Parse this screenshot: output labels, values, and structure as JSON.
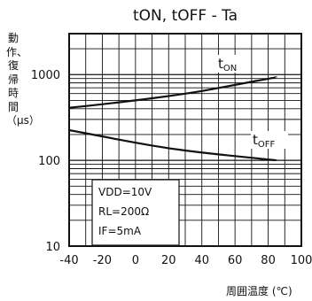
{
  "chart_data": {
    "type": "line",
    "title": "tON, tOFF - Ta",
    "xlabel": "周囲温度 (℃)",
    "ylabel": "動作、復帰時間（μs）",
    "x_ticks": [
      -40,
      -20,
      0,
      20,
      40,
      60,
      80,
      100
    ],
    "x_tick_labels": [
      "-40",
      "-20",
      "0",
      "20",
      "40",
      "60",
      "80",
      "100"
    ],
    "y_scale": "log",
    "y_ticks": [
      10,
      100,
      1000
    ],
    "y_tick_labels": [
      "10",
      "100",
      "1000"
    ],
    "xlim": [
      -40,
      100
    ],
    "ylim": [
      10,
      3000
    ],
    "grid": true,
    "series": [
      {
        "name": "tON",
        "main": "t",
        "sub": "ON",
        "x": [
          -40,
          -20,
          0,
          20,
          40,
          60,
          85
        ],
        "y": [
          410,
          450,
          500,
          560,
          640,
          760,
          930
        ]
      },
      {
        "name": "tOFF",
        "main": "t",
        "sub": "OFF",
        "x": [
          -40,
          -20,
          0,
          20,
          40,
          60,
          85
        ],
        "y": [
          225,
          190,
          160,
          138,
          123,
          112,
          100
        ]
      }
    ],
    "annotation": [
      "VDD=10V",
      "RL=200Ω",
      "IF=5mA"
    ]
  },
  "colors": {
    "line": "#111111",
    "grid": "#111111",
    "background": "#ffffff"
  }
}
